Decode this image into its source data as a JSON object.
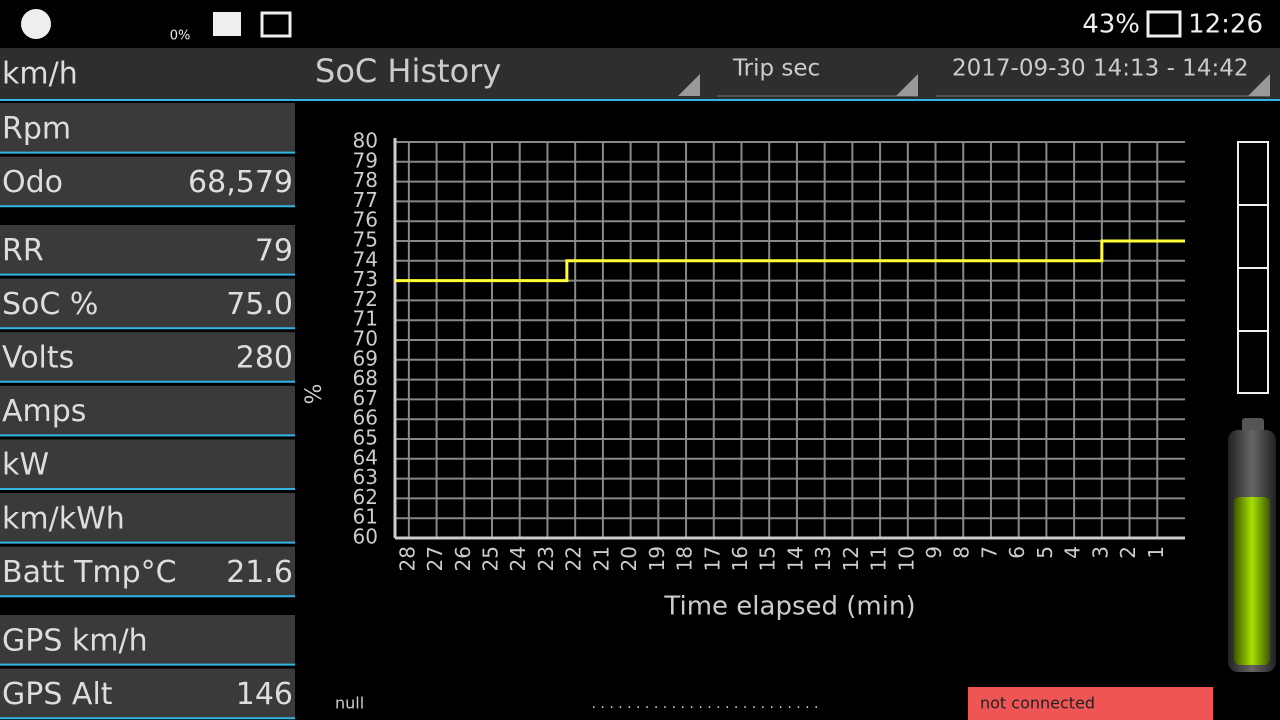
{
  "status_bar": {
    "weather": "0%",
    "battery": "43%",
    "time": "12:26"
  },
  "header": {
    "speed_unit": "km/h",
    "chart_selector": "SoC History",
    "x_selector": "Trip sec",
    "range_selector": "2017-09-30 14:13 - 14:42"
  },
  "rows": [
    [
      {
        "label": "Rpm"
      },
      {
        "label": "Odo",
        "value": "68,579"
      }
    ],
    [
      {
        "label": "RR",
        "value": "79"
      },
      {
        "label": "SoC %",
        "value": "75.0"
      },
      {
        "label": "Volts",
        "value": "280"
      },
      {
        "label": "Amps"
      },
      {
        "label": "kW"
      },
      {
        "label": "km/kWh"
      },
      {
        "label": "Batt Tmp°C",
        "value": "21.6"
      }
    ],
    [
      {
        "label": "GPS km/h"
      },
      {
        "label": "GPS Alt",
        "value": "146"
      }
    ]
  ],
  "chart_data": {
    "type": "line",
    "x_label": "Time elapsed (min)",
    "y_label": "%",
    "x": [
      28.5,
      22.3,
      22.3,
      3,
      3,
      0
    ],
    "series": [
      {
        "name": "SoC",
        "color": "#ffff33",
        "values": [
          73,
          73,
          74,
          74,
          75,
          75
        ]
      }
    ],
    "xlim": [
      28.5,
      0
    ],
    "xticks": [
      28,
      27,
      26,
      25,
      24,
      23,
      22,
      21,
      20,
      19,
      18,
      17,
      16,
      15,
      14,
      13,
      12,
      11,
      10,
      9,
      8,
      7,
      6,
      5,
      4,
      3,
      2,
      1
    ],
    "ylim": [
      60,
      80
    ],
    "yticks": [
      60,
      61,
      62,
      63,
      64,
      65,
      66,
      67,
      68,
      69,
      70,
      71,
      72,
      73,
      74,
      75,
      76,
      77,
      78,
      79,
      80
    ],
    "grid": true
  },
  "footer": {
    "status": "null",
    "connection": "not connected"
  }
}
